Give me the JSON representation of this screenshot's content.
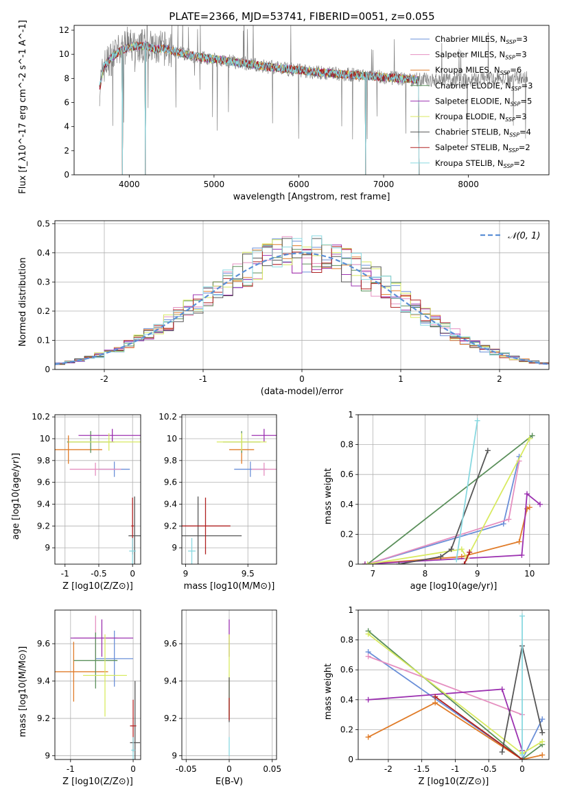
{
  "figure_title": "PLATE=2366, MJD=53741, FIBERID=0051, z=0.055",
  "series_styles": [
    {
      "name": "Chabrier MILES",
      "nssp": "3",
      "color": "#6a8fd8"
    },
    {
      "name": "Salpeter MILES",
      "nssp": "3",
      "color": "#e58fc0"
    },
    {
      "name": "Kroupa MILES",
      "nssp": "6",
      "color": "#e07b28"
    },
    {
      "name": "Chabrier ELODIE",
      "nssp": "3",
      "color": "#5a8f5a"
    },
    {
      "name": "Salpeter ELODIE",
      "nssp": "5",
      "color": "#9b30b0"
    },
    {
      "name": "Kroupa ELODIE",
      "nssp": "3",
      "color": "#d8ea60"
    },
    {
      "name": "Chabrier STELIB",
      "nssp": "4",
      "color": "#555555"
    },
    {
      "name": "Salpeter STELIB",
      "nssp": "2",
      "color": "#b02020"
    },
    {
      "name": "Kroupa STELIB",
      "nssp": "2",
      "color": "#88d8e0"
    }
  ],
  "chart_data": [
    {
      "id": "spectrum",
      "type": "line",
      "title": "PLATE=2366, MJD=53741, FIBERID=0051, z=0.055",
      "xlabel": "wavelength [Angstrom, rest frame]",
      "ylabel": "Flux [f_λ10^-17 erg cm^-2 s^-1 A^-1]",
      "xlim": [
        3350,
        8950
      ],
      "ylim": [
        0,
        12.4
      ],
      "xticks": [
        4000,
        5000,
        6000,
        7000,
        8000
      ],
      "yticks": [
        0,
        2,
        4,
        6,
        8,
        10,
        12
      ],
      "data_color": "#808080",
      "data_envelope": [
        [
          3650,
          7.2
        ],
        [
          3700,
          9.0
        ],
        [
          3800,
          9.8
        ],
        [
          3900,
          10.3
        ],
        [
          4000,
          10.6
        ],
        [
          4100,
          10.7
        ],
        [
          4200,
          10.7
        ],
        [
          4300,
          10.4
        ],
        [
          4400,
          10.5
        ],
        [
          4500,
          10.3
        ],
        [
          4600,
          10.1
        ],
        [
          4800,
          9.8
        ],
        [
          5000,
          9.6
        ],
        [
          5200,
          9.4
        ],
        [
          5400,
          9.2
        ],
        [
          5600,
          9.0
        ],
        [
          5800,
          8.8
        ],
        [
          6000,
          8.7
        ],
        [
          6200,
          8.5
        ],
        [
          6400,
          8.4
        ],
        [
          6600,
          8.3
        ],
        [
          6800,
          8.2
        ],
        [
          7000,
          8.1
        ],
        [
          7200,
          8.0
        ],
        [
          7400,
          7.9
        ],
        [
          7600,
          7.9
        ],
        [
          7800,
          7.9
        ],
        [
          8000,
          7.9
        ],
        [
          8200,
          8.0
        ],
        [
          8400,
          8.0
        ],
        [
          8700,
          8.0
        ]
      ],
      "model_envelope": [
        [
          3650,
          7.2
        ],
        [
          3700,
          9.0
        ],
        [
          3800,
          9.8
        ],
        [
          3900,
          10.3
        ],
        [
          4000,
          10.6
        ],
        [
          4100,
          10.7
        ],
        [
          4200,
          10.7
        ],
        [
          4300,
          10.4
        ],
        [
          4400,
          10.5
        ],
        [
          4500,
          10.3
        ],
        [
          4600,
          10.1
        ],
        [
          4800,
          9.8
        ],
        [
          5000,
          9.6
        ],
        [
          5200,
          9.4
        ],
        [
          5400,
          9.2
        ],
        [
          5600,
          9.0
        ],
        [
          5800,
          8.8
        ],
        [
          6000,
          8.7
        ],
        [
          6200,
          8.5
        ],
        [
          6400,
          8.4
        ],
        [
          6600,
          8.3
        ],
        [
          6800,
          8.2
        ],
        [
          7000,
          8.1
        ],
        [
          7200,
          8.0
        ],
        [
          7420,
          7.9
        ]
      ],
      "model_drop_x": [
        3920,
        4190,
        6790,
        7420
      ],
      "legend_position": "upper right"
    },
    {
      "id": "residuals",
      "type": "line",
      "xlabel": "(data-model)/error",
      "ylabel": "Normed distribution",
      "xlim": [
        -2.5,
        2.5
      ],
      "ylim": [
        0,
        0.51
      ],
      "xticks": [
        -2,
        -1,
        0,
        1,
        2
      ],
      "yticks": [
        0,
        0.1,
        0.2,
        0.3,
        0.4,
        0.5
      ],
      "curve": {
        "name": "𝒩(0, 1)",
        "color": "#5b8fd6",
        "mu": 0,
        "sigma": 1
      },
      "hist_bin_width": 0.1,
      "legend_position": "upper right"
    },
    {
      "id": "Z_age",
      "type": "scatter",
      "xlabel": "Z [log10(Z/Z⊙)]",
      "ylabel": "age [log10(age/yr)]",
      "xlim": [
        -1.15,
        0.12
      ],
      "ylim": [
        8.85,
        10.22
      ],
      "xticks": [
        -1,
        -0.5,
        0
      ],
      "yticks": [
        9.0,
        9.2,
        9.4,
        9.6,
        9.8,
        10.0,
        10.2
      ],
      "points": [
        {
          "s": 0,
          "x": -0.27,
          "y": 9.72,
          "ex": 0.23,
          "ey": 0.07
        },
        {
          "s": 1,
          "x": -0.55,
          "y": 9.72,
          "ex": 0.38,
          "ey": 0.06
        },
        {
          "s": 2,
          "x": -0.95,
          "y": 9.9,
          "ex": 0.5,
          "ey": 0.13
        },
        {
          "s": 3,
          "x": -0.62,
          "y": 9.97,
          "ex": 0.35,
          "ey": 0.1
        },
        {
          "s": 4,
          "x": -0.3,
          "y": 10.03,
          "ex": 0.5,
          "ey": 0.06
        },
        {
          "s": 5,
          "x": -0.35,
          "y": 9.97,
          "ex": 0.6,
          "ey": 0.08
        },
        {
          "s": 6,
          "x": 0.03,
          "y": 9.11,
          "ex": 0.09,
          "ey": 0.36
        },
        {
          "s": 7,
          "x": 0.0,
          "y": 9.2,
          "ex": 0.02,
          "ey": 0.26
        },
        {
          "s": 8,
          "x": 0.0,
          "y": 8.97,
          "ex": 0.05,
          "ey": 0.12
        }
      ]
    },
    {
      "id": "mass_age",
      "type": "scatter",
      "xlabel": "mass [log10(M/M⊙)]",
      "ylabel": "",
      "xlim": [
        8.97,
        9.73
      ],
      "ylim": [
        8.85,
        10.22
      ],
      "xticks": [
        9.0,
        9.5
      ],
      "yticks": [
        9.0,
        9.2,
        9.4,
        9.6,
        9.8,
        10.0,
        10.2
      ],
      "points": [
        {
          "s": 0,
          "x": 9.52,
          "y": 9.72,
          "ex": 0.13,
          "ey": 0.07
        },
        {
          "s": 1,
          "x": 9.63,
          "y": 9.72,
          "ex": 0.1,
          "ey": 0.06
        },
        {
          "s": 2,
          "x": 9.45,
          "y": 9.9,
          "ex": 0.1,
          "ey": 0.13
        },
        {
          "s": 3,
          "x": 9.45,
          "y": 9.97,
          "ex": 0.15,
          "ey": 0.1
        },
        {
          "s": 4,
          "x": 9.63,
          "y": 10.03,
          "ex": 0.1,
          "ey": 0.06
        },
        {
          "s": 5,
          "x": 9.45,
          "y": 9.97,
          "ex": 0.2,
          "ey": 0.08
        },
        {
          "s": 6,
          "x": 9.1,
          "y": 9.11,
          "ex": 0.35,
          "ey": 0.36
        },
        {
          "s": 7,
          "x": 9.16,
          "y": 9.2,
          "ex": 0.2,
          "ey": 0.26
        },
        {
          "s": 8,
          "x": 9.05,
          "y": 8.97,
          "ex": 0.03,
          "ey": 0.12
        }
      ]
    },
    {
      "id": "age_weight",
      "type": "line",
      "xlabel": "age  [log10(age/yr)]",
      "ylabel": "mass weight",
      "xlim": [
        6.72,
        10.37
      ],
      "ylim": [
        0,
        1.0
      ],
      "xticks": [
        7,
        8,
        9,
        10
      ],
      "yticks": [
        0,
        0.2,
        0.4,
        0.6,
        0.8,
        1.0
      ],
      "series": [
        {
          "s": 0,
          "x": [
            6.9,
            9.5,
            9.8
          ],
          "y": [
            0.0,
            0.27,
            0.72
          ]
        },
        {
          "s": 1,
          "x": [
            6.9,
            9.6,
            9.8
          ],
          "y": [
            0.0,
            0.3,
            0.69
          ]
        },
        {
          "s": 2,
          "x": [
            6.85,
            8.7,
            9.8,
            9.95,
            10.0
          ],
          "y": [
            0.0,
            0.05,
            0.15,
            0.37,
            0.38
          ]
        },
        {
          "s": 3,
          "x": [
            6.9,
            10.05
          ],
          "y": [
            0.0,
            0.86
          ]
        },
        {
          "s": 4,
          "x": [
            6.85,
            9.85,
            9.95,
            10.2
          ],
          "y": [
            0.0,
            0.06,
            0.47,
            0.4
          ]
        },
        {
          "s": 5,
          "x": [
            6.9,
            8.7,
            8.8,
            10.0
          ],
          "y": [
            0.0,
            0.1,
            0.04,
            0.84
          ]
        },
        {
          "s": 6,
          "x": [
            7.5,
            8.3,
            8.5,
            9.2
          ],
          "y": [
            0.0,
            0.05,
            0.1,
            0.76
          ]
        },
        {
          "s": 7,
          "x": [
            8.75,
            8.85
          ],
          "y": [
            0.0,
            0.08
          ]
        },
        {
          "s": 8,
          "x": [
            8.6,
            9.0
          ],
          "y": [
            0.03,
            0.96
          ]
        }
      ]
    },
    {
      "id": "Z_mass",
      "type": "scatter",
      "xlabel": "Z [log10(Z/Z⊙)]",
      "ylabel": "mass [log10(M/M⊙)]",
      "xlim": [
        -1.25,
        0.12
      ],
      "ylim": [
        8.98,
        9.78
      ],
      "xticks": [
        -1,
        0
      ],
      "yticks": [
        9.0,
        9.2,
        9.4,
        9.6
      ],
      "points": [
        {
          "s": 0,
          "x": -0.3,
          "y": 9.52,
          "ex": 0.3,
          "ey": 0.15
        },
        {
          "s": 1,
          "x": -0.6,
          "y": 9.63,
          "ex": 0.35,
          "ey": 0.12
        },
        {
          "s": 2,
          "x": -0.95,
          "y": 9.45,
          "ex": 0.55,
          "ey": 0.16
        },
        {
          "s": 3,
          "x": -0.6,
          "y": 9.51,
          "ex": 0.35,
          "ey": 0.15
        },
        {
          "s": 4,
          "x": -0.5,
          "y": 9.63,
          "ex": 0.5,
          "ey": 0.1
        },
        {
          "s": 5,
          "x": -0.45,
          "y": 9.43,
          "ex": 0.35,
          "ey": 0.22
        },
        {
          "s": 6,
          "x": 0.03,
          "y": 9.07,
          "ex": 0.08,
          "ey": 0.33
        },
        {
          "s": 7,
          "x": 0.0,
          "y": 9.16,
          "ex": 0.05,
          "ey": 0.14
        },
        {
          "s": 8,
          "x": 0.0,
          "y": 9.03,
          "ex": 0.03,
          "ey": 0.07
        }
      ]
    },
    {
      "id": "ebv_mass",
      "type": "scatter",
      "xlabel": "E(B-V)",
      "ylabel": "",
      "xlim": [
        -0.055,
        0.055
      ],
      "ylim": [
        8.98,
        9.78
      ],
      "xticks": [
        -0.05,
        0,
        0.05
      ],
      "yticks": [
        9.0,
        9.2,
        9.4,
        9.6
      ],
      "points": [
        {
          "s": 4,
          "x": 0,
          "y": 9.63,
          "ex": 0,
          "ey": 0.1
        },
        {
          "s": 5,
          "x": 0,
          "y": 9.43,
          "ex": 0,
          "ey": 0.22
        },
        {
          "s": 6,
          "x": 0,
          "y": 9.3,
          "ex": 0,
          "ey": 0.12
        },
        {
          "s": 7,
          "x": 0,
          "y": 9.25,
          "ex": 0,
          "ey": 0.06
        },
        {
          "s": 8,
          "x": 0,
          "y": 9.05,
          "ex": 0,
          "ey": 0.05
        }
      ]
    },
    {
      "id": "Z_weight",
      "type": "line",
      "xlabel": "Z [log10(Z/Z⊙)]",
      "ylabel": "mass weight",
      "xlim": [
        -2.45,
        0.4
      ],
      "ylim": [
        0,
        1.0
      ],
      "xticks": [
        -2.0,
        -1.5,
        -1.0,
        -0.5,
        0.0
      ],
      "yticks": [
        0,
        0.2,
        0.4,
        0.6,
        0.8,
        1.0
      ],
      "series": [
        {
          "s": 0,
          "x": [
            -2.3,
            0.0,
            0.3
          ],
          "y": [
            0.72,
            0.0,
            0.27
          ]
        },
        {
          "s": 1,
          "x": [
            -2.3,
            0.0
          ],
          "y": [
            0.69,
            0.3
          ]
        },
        {
          "s": 2,
          "x": [
            -2.3,
            -1.3,
            0.0,
            0.3
          ],
          "y": [
            0.15,
            0.38,
            0.0,
            0.03
          ]
        },
        {
          "s": 3,
          "x": [
            -2.3,
            0.0,
            0.3
          ],
          "y": [
            0.86,
            0.0,
            0.1
          ]
        },
        {
          "s": 4,
          "x": [
            -2.3,
            -0.3,
            0.0
          ],
          "y": [
            0.4,
            0.47,
            0.06
          ]
        },
        {
          "s": 5,
          "x": [
            -2.3,
            0.0,
            0.3
          ],
          "y": [
            0.84,
            0.04,
            0.12
          ]
        },
        {
          "s": 6,
          "x": [
            -0.3,
            0.0,
            0.3
          ],
          "y": [
            0.05,
            0.76,
            0.18
          ]
        },
        {
          "s": 7,
          "x": [
            -1.3,
            0.0
          ],
          "y": [
            0.42,
            0.0
          ]
        },
        {
          "s": 8,
          "x": [
            0.0,
            0.0
          ],
          "y": [
            0.03,
            0.96
          ]
        }
      ]
    }
  ]
}
